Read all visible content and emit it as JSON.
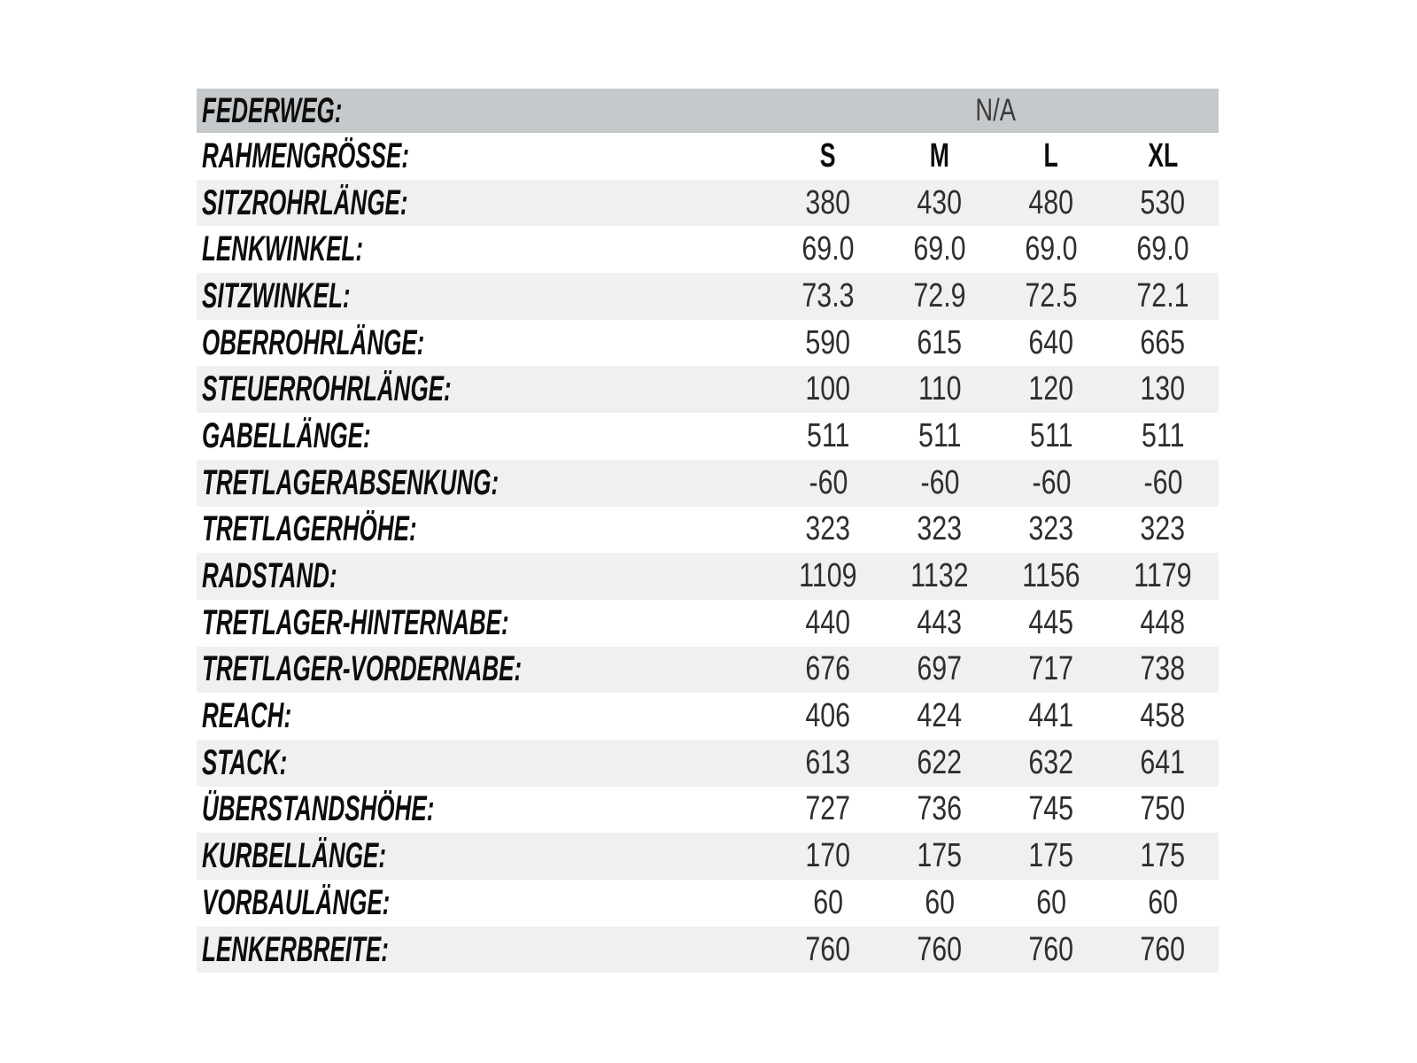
{
  "colors": {
    "header_row_bg": "#c6c9cb",
    "stripe_row_bg": "#f0f0f3",
    "plain_row_bg": "#ffffff",
    "label_text": "#0d0d0d",
    "value_text": "#2e2e2e"
  },
  "table": {
    "header": {
      "label": "FEDERWEG:",
      "value": "N/A"
    },
    "size_row": {
      "label": "RAHMENGRÖSSE:",
      "values": [
        "S",
        "M",
        "L",
        "XL"
      ]
    },
    "rows": [
      {
        "label": "SITZROHRLÄNGE:",
        "values": [
          "380",
          "430",
          "480",
          "530"
        ]
      },
      {
        "label": "LENKWINKEL:",
        "values": [
          "69.0",
          "69.0",
          "69.0",
          "69.0"
        ]
      },
      {
        "label": "SITZWINKEL:",
        "values": [
          "73.3",
          "72.9",
          "72.5",
          "72.1"
        ]
      },
      {
        "label": "OBERROHRLÄNGE:",
        "values": [
          "590",
          "615",
          "640",
          "665"
        ]
      },
      {
        "label": "STEUERROHRLÄNGE:",
        "values": [
          "100",
          "110",
          "120",
          "130"
        ]
      },
      {
        "label": "GABELLÄNGE:",
        "values": [
          "511",
          "511",
          "511",
          "511"
        ]
      },
      {
        "label": "TRETLAGERABSENKUNG:",
        "values": [
          "-60",
          "-60",
          "-60",
          "-60"
        ]
      },
      {
        "label": "TRETLAGERHÖHE:",
        "values": [
          "323",
          "323",
          "323",
          "323"
        ]
      },
      {
        "label": "RADSTAND:",
        "values": [
          "1109",
          "1132",
          "1156",
          "1179"
        ]
      },
      {
        "label": "TRETLAGER-HINTERNABE:",
        "values": [
          "440",
          "443",
          "445",
          "448"
        ]
      },
      {
        "label": "TRETLAGER-VORDERNABE:",
        "values": [
          "676",
          "697",
          "717",
          "738"
        ]
      },
      {
        "label": "REACH:",
        "values": [
          "406",
          "424",
          "441",
          "458"
        ]
      },
      {
        "label": "STACK:",
        "values": [
          "613",
          "622",
          "632",
          "641"
        ]
      },
      {
        "label": "ÜBERSTANDSHÖHE:",
        "values": [
          "727",
          "736",
          "745",
          "750"
        ]
      },
      {
        "label": "KURBELLÄNGE:",
        "values": [
          "170",
          "175",
          "175",
          "175"
        ]
      },
      {
        "label": "VORBAULÄNGE:",
        "values": [
          "60",
          "60",
          "60",
          "60"
        ]
      },
      {
        "label": "LENKERBREITE:",
        "values": [
          "760",
          "760",
          "760",
          "760"
        ]
      }
    ]
  },
  "chart_data": {
    "type": "table",
    "title": "Bike geometry specification (German)",
    "columns": [
      "S",
      "M",
      "L",
      "XL"
    ],
    "rows": [
      {
        "label": "FEDERWEG:",
        "values": [
          "N/A"
        ]
      },
      {
        "label": "RAHMENGRÖSSE:",
        "values": [
          "S",
          "M",
          "L",
          "XL"
        ]
      },
      {
        "label": "SITZROHRLÄNGE:",
        "values": [
          380,
          430,
          480,
          530
        ]
      },
      {
        "label": "LENKWINKEL:",
        "values": [
          69.0,
          69.0,
          69.0,
          69.0
        ]
      },
      {
        "label": "SITZWINKEL:",
        "values": [
          73.3,
          72.9,
          72.5,
          72.1
        ]
      },
      {
        "label": "OBERROHRLÄNGE:",
        "values": [
          590,
          615,
          640,
          665
        ]
      },
      {
        "label": "STEUERROHRLÄNGE:",
        "values": [
          100,
          110,
          120,
          130
        ]
      },
      {
        "label": "GABELLÄNGE:",
        "values": [
          511,
          511,
          511,
          511
        ]
      },
      {
        "label": "TRETLAGERABSENKUNG:",
        "values": [
          -60,
          -60,
          -60,
          -60
        ]
      },
      {
        "label": "TRETLAGERHÖHE:",
        "values": [
          323,
          323,
          323,
          323
        ]
      },
      {
        "label": "RADSTAND:",
        "values": [
          1109,
          1132,
          1156,
          1179
        ]
      },
      {
        "label": "TRETLAGER-HINTERNABE:",
        "values": [
          440,
          443,
          445,
          448
        ]
      },
      {
        "label": "TRETLAGER-VORDERNABE:",
        "values": [
          676,
          697,
          717,
          738
        ]
      },
      {
        "label": "REACH:",
        "values": [
          406,
          424,
          441,
          458
        ]
      },
      {
        "label": "STACK:",
        "values": [
          613,
          622,
          632,
          641
        ]
      },
      {
        "label": "ÜBERSTANDSHÖHE:",
        "values": [
          727,
          736,
          745,
          750
        ]
      },
      {
        "label": "KURBELLÄNGE:",
        "values": [
          170,
          175,
          175,
          175
        ]
      },
      {
        "label": "VORBAULÄNGE:",
        "values": [
          60,
          60,
          60,
          60
        ]
      },
      {
        "label": "LENKERBREITE:",
        "values": [
          760,
          760,
          760,
          760
        ]
      }
    ]
  }
}
